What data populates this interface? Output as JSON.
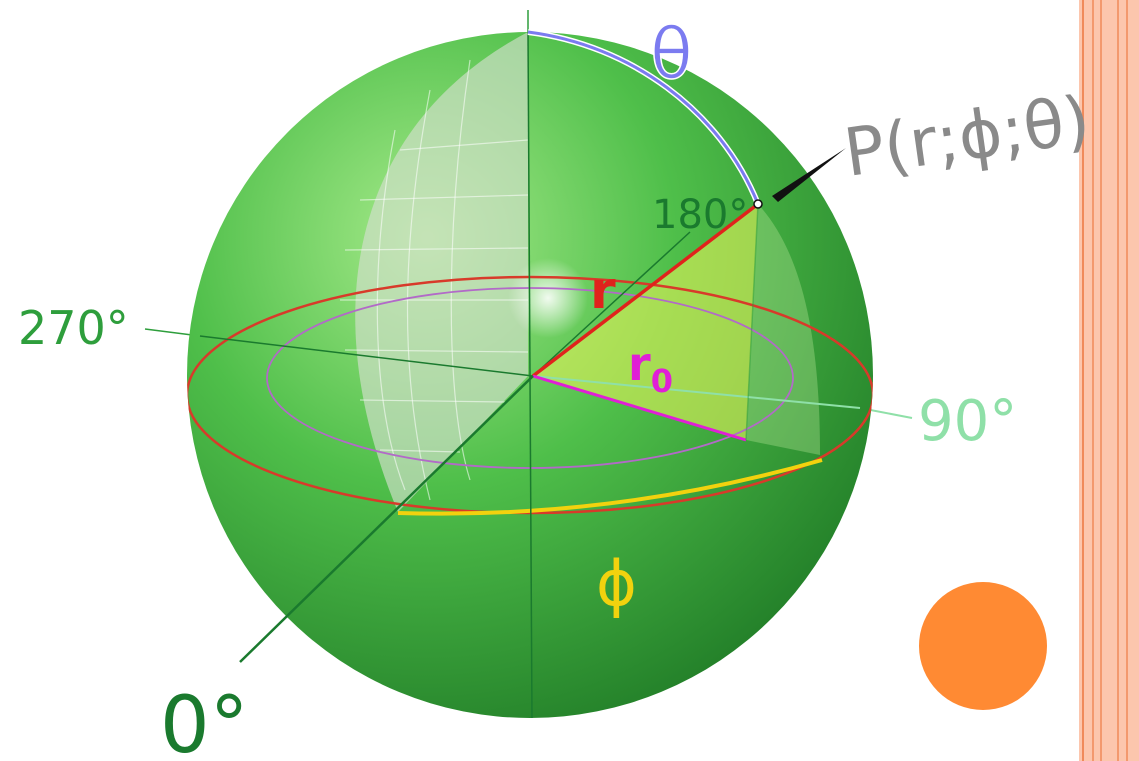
{
  "labels": {
    "theta": "θ",
    "point": "P(r;ϕ;θ)",
    "deg180": "180°",
    "deg270": "270°",
    "deg90": "90°",
    "deg0": "0°",
    "radius": "r",
    "radius0_base": "r",
    "radius0_sub": "0",
    "phi": "ϕ"
  },
  "colors": {
    "sphere_light": "#a6ea8a",
    "sphere_mid": "#4fbf4a",
    "sphere_dark": "#1f7a26",
    "axis_green": "#1a7a2e",
    "label_green": "#2e9e3c",
    "label_light_green": "#8fe0a8",
    "theta_blue": "#7b7bf0",
    "radius_red": "#e0231c",
    "radius0_magenta": "#e01fd6",
    "phi_yellow": "#f2d20e",
    "equator_red": "#d83a2a",
    "stripe_peach": "#fcc6ad",
    "stripe_line": "#f08a5a",
    "orange_dot": "#ff8a33",
    "text_gray": "#8a8a8a"
  },
  "icons": {
    "decorative_dot": "orange-circle"
  }
}
